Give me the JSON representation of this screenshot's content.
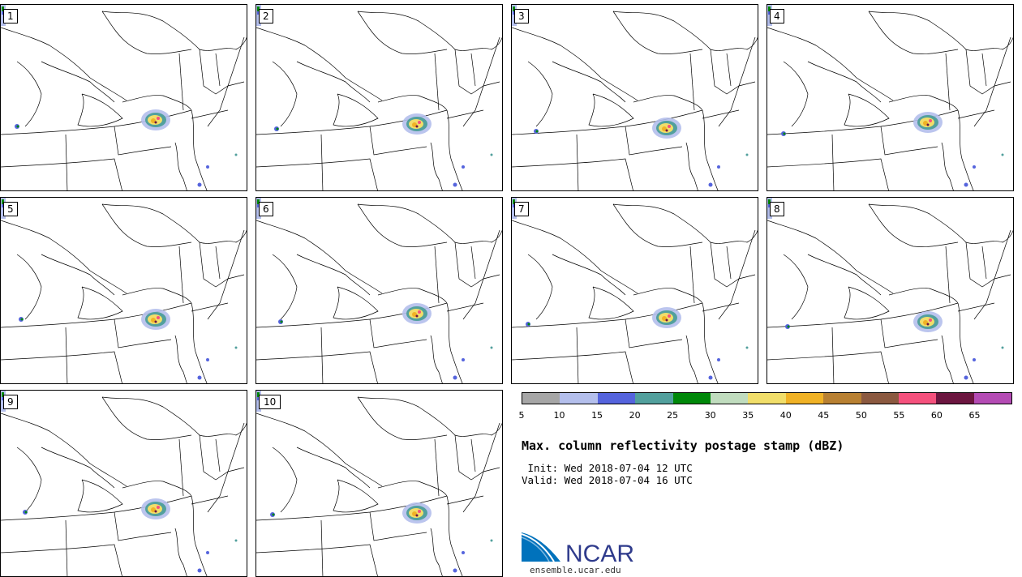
{
  "panels": [
    {
      "label": "1"
    },
    {
      "label": "2"
    },
    {
      "label": "3"
    },
    {
      "label": "4"
    },
    {
      "label": "5"
    },
    {
      "label": "6"
    },
    {
      "label": "7"
    },
    {
      "label": "8"
    },
    {
      "label": "9"
    },
    {
      "label": "10"
    }
  ],
  "colorbar": {
    "colors": [
      "#a6a6a6",
      "#b4bfec",
      "#5564dd",
      "#52a09d",
      "#00880a",
      "#c0dcbe",
      "#f1de6a",
      "#f0b226",
      "#b88032",
      "#8b5940",
      "#f5517d",
      "#6c1640",
      "#b44bb4"
    ],
    "ticks": [
      "5",
      "10",
      "15",
      "20",
      "25",
      "30",
      "35",
      "40",
      "45",
      "50",
      "55",
      "60",
      "65"
    ]
  },
  "title": "Max. column reflectivity postage stamp (dBZ)",
  "init_line": " Init: Wed 2018-07-04 12 UTC",
  "valid_line": "Valid: Wed 2018-07-04 16 UTC",
  "logo": {
    "name": "NCAR",
    "url": "ensemble.ucar.edu",
    "blue": "#0072bc"
  }
}
